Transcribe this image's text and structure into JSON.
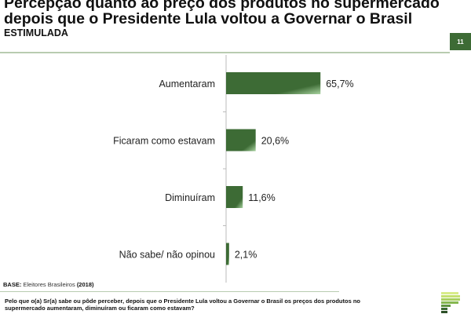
{
  "header": {
    "title": "Percepção quanto ao preço dos produtos no supermercado depois que o Presidente Lula voltou a Governar o Brasil",
    "subtitle": "ESTIMULADA",
    "page_number": "11"
  },
  "footer": {
    "base_label": "BASE:",
    "base_text": "Eleitores Brasileiros",
    "base_year": "(2018)",
    "question": "Pelo que o(a) Sr(a) sabe ou pôde perceber, depois que o Presidente Lula voltou a Governar o Brasil os preços dos produtos no supermercado aumentaram, diminuíram ou ficaram como estavam?"
  },
  "colors": {
    "bar": "#3d6b35",
    "bar_light": "#a8d3a0",
    "accent": "#3d6b35"
  },
  "chart_data": {
    "type": "bar",
    "orientation": "horizontal",
    "title": "Percepção quanto ao preço dos produtos no supermercado depois que o Presidente Lula voltou a Governar o Brasil",
    "categories": [
      "Aumentaram",
      "Ficaram como estavam",
      "Diminuíram",
      "Não sabe/ não opinou"
    ],
    "values": [
      65.7,
      20.6,
      11.6,
      2.1
    ],
    "labels": [
      "65,7%",
      "20,6%",
      "11,6%",
      "2,1%"
    ],
    "xlim": [
      0,
      100
    ],
    "grid": false,
    "legend": "none"
  }
}
